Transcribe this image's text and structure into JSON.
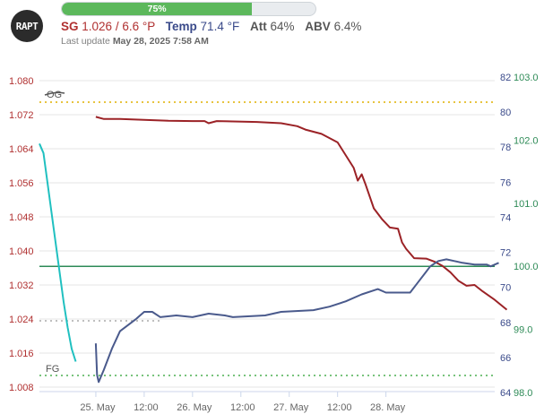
{
  "header": {
    "logo_text": "RAPT",
    "progress_label": "75%",
    "progress_fraction": 0.75,
    "sg_label": "SG",
    "sg_value": "1.026 / 6.6 °P",
    "temp_label": "Temp",
    "temp_value": "71.4 °F",
    "att_label": "Att",
    "att_value": "64%",
    "abv_label": "ABV",
    "abv_value": "6.4%",
    "last_update_prefix": "Last update",
    "last_update_value": "May 28, 2025 7:58 AM"
  },
  "colors": {
    "sg": "#9b2226",
    "temp": "#4a5a8c",
    "target": "#20c0c0",
    "abv_line": "#2e8b57",
    "og_fg": "#e0b000",
    "fg_line": "#4caf50",
    "grid": "#e6e6e6",
    "progress": "#5cb85c"
  },
  "chart_data": {
    "type": "line",
    "x_ticks": [
      "25. May",
      "12:00",
      "26. May",
      "12:00",
      "27. May",
      "12:00",
      "28. May"
    ],
    "y_left_ticks": [
      "1.080",
      "1.072",
      "1.064",
      "1.056",
      "1.048",
      "1.040",
      "1.032",
      "1.024",
      "1.016",
      "1.008"
    ],
    "y_left_range": [
      1.008,
      1.08
    ],
    "y_temp_ticks": [
      "82",
      "80",
      "78",
      "76",
      "74",
      "72",
      "70",
      "68",
      "66",
      "64"
    ],
    "y_temp_range": [
      64,
      82
    ],
    "y_abv_ticks": [
      "103.0",
      "102.0",
      "101.0",
      "100.0",
      "99.0",
      "98.0"
    ],
    "y_abv_range": [
      98,
      103
    ],
    "annotations": {
      "og": "OG",
      "fg": "FG"
    },
    "og_value": 1.074,
    "fg_value": 1.009,
    "abv_ref_value": 100.0,
    "grey_ref_value": 1.025,
    "x_range_hours": [
      -14,
      99
    ],
    "series": [
      {
        "key": "sg",
        "points": [
          [
            0,
            1.0715
          ],
          [
            2,
            1.071
          ],
          [
            6,
            1.071
          ],
          [
            12,
            1.0708
          ],
          [
            18,
            1.0706
          ],
          [
            24,
            1.0705
          ],
          [
            27,
            1.0705
          ],
          [
            28,
            1.07
          ],
          [
            30,
            1.0705
          ],
          [
            40,
            1.0703
          ],
          [
            46,
            1.07
          ],
          [
            50,
            1.0693
          ],
          [
            52,
            1.0685
          ],
          [
            56,
            1.0675
          ],
          [
            60,
            1.0655
          ],
          [
            62,
            1.0625
          ],
          [
            64,
            1.0595
          ],
          [
            65,
            1.0565
          ],
          [
            66,
            1.058
          ],
          [
            67,
            1.0555
          ],
          [
            69,
            1.05
          ],
          [
            71,
            1.0475
          ],
          [
            73,
            1.0455
          ],
          [
            75,
            1.0452
          ],
          [
            76,
            1.042
          ],
          [
            77,
            1.0405
          ],
          [
            79,
            1.0383
          ],
          [
            82,
            1.0382
          ],
          [
            84,
            1.0375
          ],
          [
            86,
            1.0365
          ],
          [
            88,
            1.035
          ],
          [
            90,
            1.033
          ],
          [
            92,
            1.0318
          ],
          [
            94,
            1.032
          ],
          [
            96,
            1.0305
          ],
          [
            99,
            1.0285
          ],
          [
            102,
            1.0262
          ]
        ]
      },
      {
        "key": "temp",
        "points": [
          [
            0,
            66.8
          ],
          [
            0.3,
            65.0
          ],
          [
            0.7,
            64.6
          ],
          [
            2,
            65.3
          ],
          [
            4,
            66.5
          ],
          [
            6,
            67.5
          ],
          [
            10,
            68.2
          ],
          [
            12,
            68.6
          ],
          [
            14,
            68.6
          ],
          [
            16,
            68.3
          ],
          [
            20,
            68.4
          ],
          [
            24,
            68.3
          ],
          [
            28,
            68.5
          ],
          [
            32,
            68.4
          ],
          [
            34,
            68.3
          ],
          [
            42,
            68.4
          ],
          [
            46,
            68.6
          ],
          [
            54,
            68.7
          ],
          [
            58,
            68.9
          ],
          [
            62,
            69.2
          ],
          [
            66,
            69.6
          ],
          [
            70,
            69.9
          ],
          [
            72,
            69.7
          ],
          [
            78,
            69.7
          ],
          [
            80,
            70.3
          ],
          [
            82,
            70.9
          ],
          [
            83,
            71.2
          ],
          [
            85,
            71.5
          ],
          [
            87,
            71.6
          ],
          [
            89,
            71.5
          ],
          [
            91,
            71.4
          ],
          [
            94,
            71.3
          ],
          [
            97,
            71.3
          ],
          [
            98,
            71.2
          ],
          [
            100,
            71.4
          ]
        ]
      },
      {
        "key": "target",
        "points": [
          [
            -14,
            1.0652
          ],
          [
            -13,
            1.063
          ],
          [
            -12,
            1.056
          ],
          [
            -11,
            1.049
          ],
          [
            -10,
            1.042
          ],
          [
            -9,
            1.035
          ],
          [
            -8,
            1.028
          ],
          [
            -7,
            1.022
          ],
          [
            -6,
            1.017
          ],
          [
            -5,
            1.014
          ]
        ]
      }
    ]
  }
}
